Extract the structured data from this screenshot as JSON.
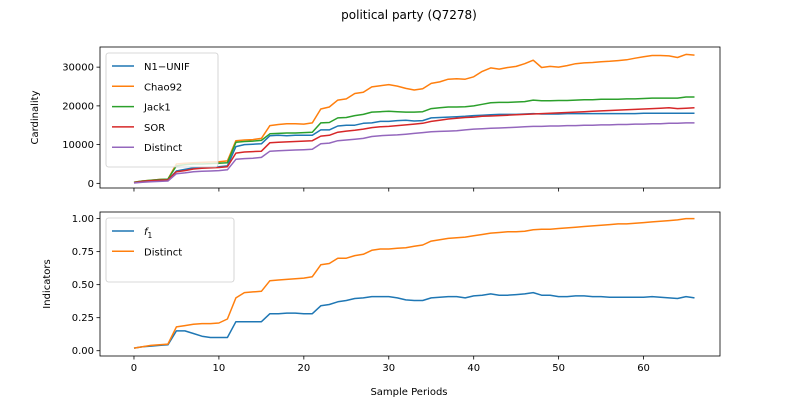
{
  "chart_data": {
    "title": "political party (Q7278)",
    "xlabel": "Sample Periods",
    "x": [
      0,
      1,
      2,
      3,
      4,
      5,
      6,
      7,
      8,
      9,
      10,
      11,
      12,
      13,
      14,
      15,
      16,
      17,
      18,
      19,
      20,
      21,
      22,
      23,
      24,
      25,
      26,
      27,
      28,
      29,
      30,
      31,
      32,
      33,
      34,
      35,
      36,
      37,
      38,
      39,
      40,
      41,
      42,
      43,
      44,
      45,
      46,
      47,
      48,
      49,
      50,
      51,
      52,
      53,
      54,
      55,
      56,
      57,
      58,
      59,
      60,
      61,
      62,
      63,
      64,
      65,
      66
    ],
    "xlim": [
      -4,
      69
    ],
    "xticks": [
      0,
      10,
      20,
      30,
      40,
      50,
      60
    ],
    "xtick_labels": [
      "0",
      "10",
      "20",
      "30",
      "40",
      "50",
      "60"
    ],
    "panels": [
      {
        "type": "line",
        "ylabel": "Cardinality",
        "ylim": [
          -1200,
          35200
        ],
        "yticks": [
          0,
          10000,
          20000,
          30000
        ],
        "ytick_labels": [
          "0",
          "10000",
          "20000",
          "30000"
        ],
        "legend_position": "top-left",
        "series": [
          {
            "name": "N1−UNIF",
            "color": "#1f77b4",
            "values": [
              200,
              500,
              700,
              800,
              900,
              3200,
              3600,
              4000,
              4100,
              4200,
              4300,
              4500,
              9500,
              10000,
              10100,
              10200,
              12300,
              12400,
              12300,
              12400,
              12400,
              12400,
              13800,
              13800,
              14800,
              15000,
              15000,
              15500,
              15600,
              16000,
              16000,
              16200,
              16300,
              16100,
              16200,
              16900,
              17000,
              17100,
              17200,
              17300,
              17500,
              17600,
              17700,
              17800,
              17800,
              17800,
              17900,
              18000,
              17900,
              17900,
              17900,
              18000,
              18000,
              18000,
              18000,
              18000,
              18000,
              18000,
              18000,
              18000,
              18100,
              18100,
              18100,
              18100,
              18100,
              18100,
              18100
            ]
          },
          {
            "name": "Chao92",
            "color": "#ff7f0e",
            "values": [
              300,
              600,
              800,
              1000,
              1100,
              5000,
              5200,
              5300,
              5400,
              5500,
              5600,
              5800,
              11000,
              11200,
              11300,
              11600,
              14900,
              15200,
              15400,
              15400,
              15300,
              15600,
              19200,
              19700,
              21500,
              21800,
              23200,
              23500,
              24900,
              25200,
              25500,
              25100,
              24500,
              24100,
              24400,
              25800,
              26200,
              26900,
              27000,
              26900,
              27500,
              28900,
              29800,
              29500,
              29900,
              30200,
              30900,
              31800,
              29900,
              30200,
              30000,
              30400,
              30900,
              31100,
              31200,
              31400,
              31500,
              31700,
              31900,
              32300,
              32700,
              33000,
              33000,
              32900,
              32500,
              33300,
              33100
            ]
          },
          {
            "name": "Jack1",
            "color": "#2ca02c",
            "values": [
              300,
              600,
              800,
              1000,
              1100,
              4500,
              4800,
              5000,
              5000,
              5100,
              5200,
              5300,
              10600,
              10800,
              10900,
              11100,
              12800,
              12900,
              13000,
              13000,
              13100,
              13200,
              15600,
              15700,
              16900,
              17000,
              17500,
              17800,
              18400,
              18500,
              18600,
              18500,
              18400,
              18400,
              18500,
              19300,
              19500,
              19700,
              19700,
              19800,
              20000,
              20400,
              20800,
              20900,
              20900,
              21000,
              21100,
              21500,
              21300,
              21300,
              21400,
              21400,
              21500,
              21600,
              21600,
              21700,
              21700,
              21700,
              21800,
              21800,
              21900,
              22000,
              22000,
              22000,
              22000,
              22300,
              22300
            ]
          },
          {
            "name": "SOR",
            "color": "#d62728",
            "values": [
              200,
              500,
              700,
              800,
              900,
              3000,
              3300,
              3700,
              3900,
              4000,
              4100,
              4300,
              7800,
              8100,
              8200,
              8300,
              10500,
              10600,
              10700,
              10800,
              10900,
              11000,
              12200,
              12400,
              13200,
              13500,
              13700,
              14000,
              14400,
              14600,
              14700,
              14900,
              15100,
              15300,
              15500,
              16000,
              16300,
              16600,
              16800,
              17000,
              17100,
              17300,
              17400,
              17500,
              17600,
              17700,
              17800,
              17900,
              18000,
              18100,
              18200,
              18300,
              18400,
              18500,
              18600,
              18700,
              18800,
              18900,
              19000,
              19100,
              19200,
              19300,
              19400,
              19500,
              19300,
              19400,
              19500
            ]
          },
          {
            "name": "Distinct",
            "color": "#9467bd",
            "values": [
              100,
              300,
              400,
              500,
              600,
              2500,
              2700,
              3000,
              3100,
              3200,
              3300,
              3500,
              6200,
              6400,
              6500,
              6700,
              8300,
              8400,
              8500,
              8600,
              8700,
              8800,
              10200,
              10400,
              11000,
              11200,
              11400,
              11600,
              12100,
              12300,
              12400,
              12500,
              12700,
              12900,
              13100,
              13300,
              13400,
              13500,
              13600,
              13800,
              14000,
              14100,
              14200,
              14300,
              14400,
              14500,
              14600,
              14700,
              14700,
              14800,
              14800,
              14900,
              14900,
              15000,
              15000,
              15100,
              15100,
              15200,
              15200,
              15300,
              15300,
              15400,
              15400,
              15500,
              15500,
              15600,
              15600
            ]
          }
        ]
      },
      {
        "type": "line",
        "ylabel": "Indicators",
        "ylim": [
          -0.04,
          1.05
        ],
        "yticks": [
          0,
          0.25,
          0.5,
          0.75,
          1.0
        ],
        "ytick_labels": [
          "0.00",
          "0.25",
          "0.50",
          "0.75",
          "1.00"
        ],
        "legend_position": "top-left",
        "series": [
          {
            "name": "f1",
            "label_base": "f",
            "label_sub": "1",
            "color": "#1f77b4",
            "values": [
              0.02,
              0.03,
              0.035,
              0.04,
              0.045,
              0.15,
              0.15,
              0.13,
              0.11,
              0.1,
              0.1,
              0.1,
              0.22,
              0.22,
              0.22,
              0.22,
              0.28,
              0.28,
              0.285,
              0.285,
              0.28,
              0.28,
              0.34,
              0.35,
              0.37,
              0.38,
              0.395,
              0.4,
              0.41,
              0.41,
              0.41,
              0.4,
              0.385,
              0.38,
              0.38,
              0.4,
              0.405,
              0.41,
              0.41,
              0.4,
              0.415,
              0.42,
              0.43,
              0.42,
              0.42,
              0.425,
              0.43,
              0.44,
              0.42,
              0.42,
              0.41,
              0.41,
              0.415,
              0.415,
              0.41,
              0.41,
              0.405,
              0.405,
              0.405,
              0.405,
              0.405,
              0.41,
              0.405,
              0.4,
              0.395,
              0.41,
              0.4
            ]
          },
          {
            "name": "Distinct",
            "color": "#ff7f0e",
            "values": [
              0.02,
              0.03,
              0.04,
              0.045,
              0.05,
              0.18,
              0.19,
              0.2,
              0.205,
              0.205,
              0.21,
              0.24,
              0.4,
              0.44,
              0.445,
              0.45,
              0.53,
              0.535,
              0.54,
              0.545,
              0.55,
              0.56,
              0.65,
              0.66,
              0.7,
              0.7,
              0.72,
              0.73,
              0.76,
              0.77,
              0.77,
              0.775,
              0.78,
              0.79,
              0.8,
              0.83,
              0.84,
              0.85,
              0.855,
              0.86,
              0.87,
              0.88,
              0.89,
              0.895,
              0.9,
              0.9,
              0.905,
              0.915,
              0.92,
              0.92,
              0.925,
              0.93,
              0.935,
              0.94,
              0.945,
              0.95,
              0.955,
              0.96,
              0.96,
              0.965,
              0.97,
              0.975,
              0.98,
              0.985,
              0.99,
              1.0,
              1.0
            ]
          }
        ]
      }
    ]
  }
}
